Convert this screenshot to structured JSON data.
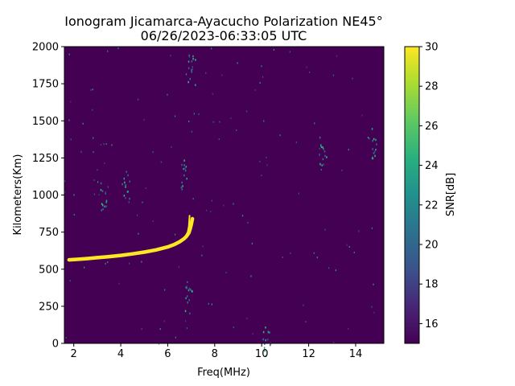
{
  "chart_data": {
    "type": "heatmap",
    "title_line1": "Ionogram Jicamarca-Ayacucho Polarization NE45°",
    "title_line2": "06/26/2023-06:33:05 UTC",
    "xlabel": "Freq(MHz)",
    "ylabel": "Kilometers(Km)",
    "xlim": [
      1.6,
      15.2
    ],
    "ylim": [
      0,
      2000
    ],
    "xticks": [
      2,
      4,
      6,
      8,
      10,
      12,
      14
    ],
    "yticks": [
      0,
      250,
      500,
      750,
      1000,
      1250,
      1500,
      1750,
      2000
    ],
    "colorbar": {
      "label": "SNR[dB]",
      "range": [
        15,
        30
      ],
      "ticks": [
        16,
        18,
        20,
        22,
        24,
        26,
        28,
        30
      ],
      "colormap": "viridis"
    },
    "background_color": "#440154",
    "trace_color": "#fde725",
    "echo_trace": {
      "description_source": "visible yellow echo trace (height vs frequency)",
      "points": [
        [
          1.8,
          563
        ],
        [
          2.2,
          567
        ],
        [
          2.6,
          572
        ],
        [
          3.0,
          578
        ],
        [
          3.5,
          585
        ],
        [
          4.0,
          593
        ],
        [
          4.5,
          603
        ],
        [
          5.0,
          615
        ],
        [
          5.5,
          630
        ],
        [
          6.0,
          650
        ],
        [
          6.3,
          668
        ],
        [
          6.5,
          684
        ],
        [
          6.7,
          706
        ],
        [
          6.8,
          722
        ],
        [
          6.9,
          745
        ],
        [
          6.95,
          770
        ],
        [
          7.0,
          800
        ],
        [
          7.05,
          840
        ]
      ],
      "branch": [
        [
          6.6,
          695
        ],
        [
          6.75,
          720
        ],
        [
          6.85,
          750
        ],
        [
          6.9,
          790
        ],
        [
          6.93,
          860
        ]
      ]
    },
    "noise_clusters": [
      {
        "x": 7.0,
        "y": 1850,
        "snr": 22
      },
      {
        "x": 6.7,
        "y": 1150,
        "snr": 21
      },
      {
        "x": 4.2,
        "y": 1060,
        "snr": 21
      },
      {
        "x": 3.3,
        "y": 1010,
        "snr": 20
      },
      {
        "x": 6.9,
        "y": 280,
        "snr": 21
      },
      {
        "x": 12.6,
        "y": 1300,
        "snr": 20
      },
      {
        "x": 14.7,
        "y": 1360,
        "snr": 21
      },
      {
        "x": 10.2,
        "y": 10,
        "snr": 20
      }
    ]
  }
}
